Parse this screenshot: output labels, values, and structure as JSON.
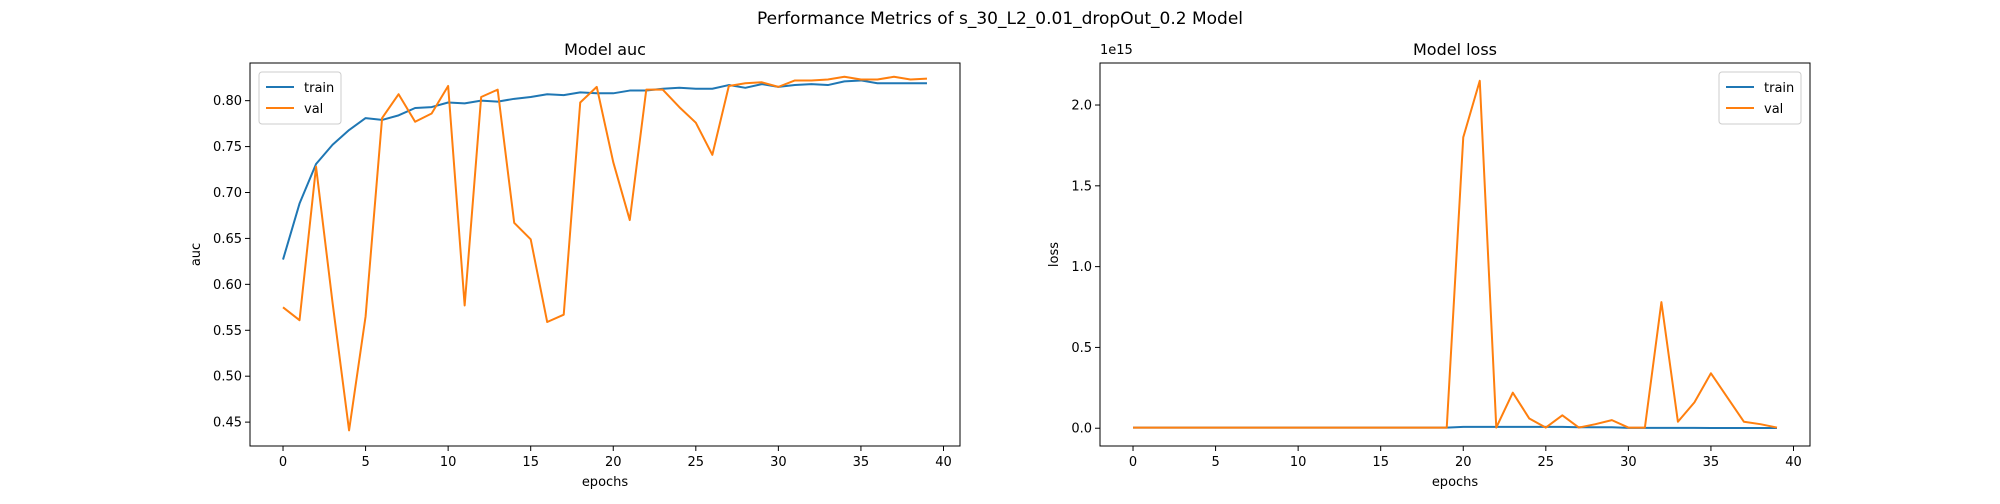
{
  "figure": {
    "suptitle": "Performance Metrics of s_30_L2_0.01_dropOut_0.2 Model"
  },
  "colors": {
    "train": "#1f77b4",
    "val": "#ff7f0e",
    "axis": "#000000",
    "background": "#ffffff"
  },
  "chart_data": [
    {
      "type": "line",
      "title": "Model auc",
      "xlabel": "epochs",
      "ylabel": "auc",
      "xlim": [
        -2,
        41
      ],
      "ylim": [
        0.424,
        0.841
      ],
      "xticks": [
        0,
        5,
        10,
        15,
        20,
        25,
        30,
        35,
        40
      ],
      "xtick_labels": [
        "0",
        "5",
        "10",
        "15",
        "20",
        "25",
        "30",
        "35",
        "40"
      ],
      "yticks": [
        0.45,
        0.5,
        0.55,
        0.6,
        0.65,
        0.7,
        0.75,
        0.8
      ],
      "ytick_labels": [
        "0.45",
        "0.50",
        "0.55",
        "0.60",
        "0.65",
        "0.70",
        "0.75",
        "0.80"
      ],
      "offset_label": "",
      "legend_position": "upper-left",
      "grid": false,
      "x": [
        0,
        1,
        2,
        3,
        4,
        5,
        6,
        7,
        8,
        9,
        10,
        11,
        12,
        13,
        14,
        15,
        16,
        17,
        18,
        19,
        20,
        21,
        22,
        23,
        24,
        25,
        26,
        27,
        28,
        29,
        30,
        31,
        32,
        33,
        34,
        35,
        36,
        37,
        38,
        39
      ],
      "series": [
        {
          "name": "train",
          "color": "#1f77b4",
          "values": [
            0.627,
            0.688,
            0.731,
            0.752,
            0.768,
            0.781,
            0.779,
            0.784,
            0.792,
            0.793,
            0.798,
            0.797,
            0.8,
            0.799,
            0.802,
            0.804,
            0.807,
            0.806,
            0.809,
            0.808,
            0.808,
            0.811,
            0.811,
            0.813,
            0.814,
            0.813,
            0.813,
            0.817,
            0.814,
            0.818,
            0.815,
            0.817,
            0.818,
            0.817,
            0.821,
            0.822,
            0.819,
            0.819,
            0.819,
            0.819
          ]
        },
        {
          "name": "val",
          "color": "#ff7f0e",
          "values": [
            0.575,
            0.561,
            0.728,
            0.58,
            0.441,
            0.565,
            0.781,
            0.807,
            0.777,
            0.786,
            0.816,
            0.577,
            0.804,
            0.812,
            0.667,
            0.649,
            0.559,
            0.567,
            0.798,
            0.815,
            0.733,
            0.67,
            0.812,
            0.812,
            0.793,
            0.776,
            0.741,
            0.816,
            0.819,
            0.82,
            0.815,
            0.822,
            0.822,
            0.823,
            0.826,
            0.823,
            0.823,
            0.826,
            0.823,
            0.824
          ]
        }
      ]
    },
    {
      "type": "line",
      "title": "Model loss",
      "xlabel": "epochs",
      "ylabel": "loss",
      "xlim": [
        -2,
        41
      ],
      "ylim": [
        -0.11,
        2.26
      ],
      "xticks": [
        0,
        5,
        10,
        15,
        20,
        25,
        30,
        35,
        40
      ],
      "xtick_labels": [
        "0",
        "5",
        "10",
        "15",
        "20",
        "25",
        "30",
        "35",
        "40"
      ],
      "yticks": [
        0.0,
        0.5,
        1.0,
        1.5,
        2.0
      ],
      "ytick_labels": [
        "0.0",
        "0.5",
        "1.0",
        "1.5",
        "2.0"
      ],
      "offset_label": "1e15",
      "legend_position": "upper-right",
      "grid": false,
      "x": [
        0,
        1,
        2,
        3,
        4,
        5,
        6,
        7,
        8,
        9,
        10,
        11,
        12,
        13,
        14,
        15,
        16,
        17,
        18,
        19,
        20,
        21,
        22,
        23,
        24,
        25,
        26,
        27,
        28,
        29,
        30,
        31,
        32,
        33,
        34,
        35,
        36,
        37,
        38,
        39
      ],
      "series": [
        {
          "name": "train",
          "color": "#1f77b4",
          "values": [
            0.004,
            0.004,
            0.004,
            0.004,
            0.004,
            0.004,
            0.004,
            0.004,
            0.004,
            0.004,
            0.004,
            0.004,
            0.004,
            0.004,
            0.004,
            0.004,
            0.004,
            0.004,
            0.004,
            0.004,
            0.008,
            0.008,
            0.008,
            0.008,
            0.008,
            0.008,
            0.008,
            0.006,
            0.006,
            0.006,
            0.002,
            0.002,
            0.002,
            0.002,
            0.002,
            0.001,
            0.001,
            0.001,
            0.001,
            0.001
          ]
        },
        {
          "name": "val",
          "color": "#ff7f0e",
          "values": [
            0.004,
            0.004,
            0.004,
            0.004,
            0.004,
            0.004,
            0.004,
            0.004,
            0.004,
            0.004,
            0.004,
            0.004,
            0.004,
            0.004,
            0.004,
            0.004,
            0.004,
            0.004,
            0.004,
            0.004,
            1.8,
            2.15,
            0.004,
            0.22,
            0.06,
            0.004,
            0.08,
            0.004,
            0.025,
            0.05,
            0.004,
            0.004,
            0.78,
            0.04,
            0.16,
            0.34,
            0.19,
            0.04,
            0.025,
            0.004
          ]
        }
      ]
    }
  ]
}
